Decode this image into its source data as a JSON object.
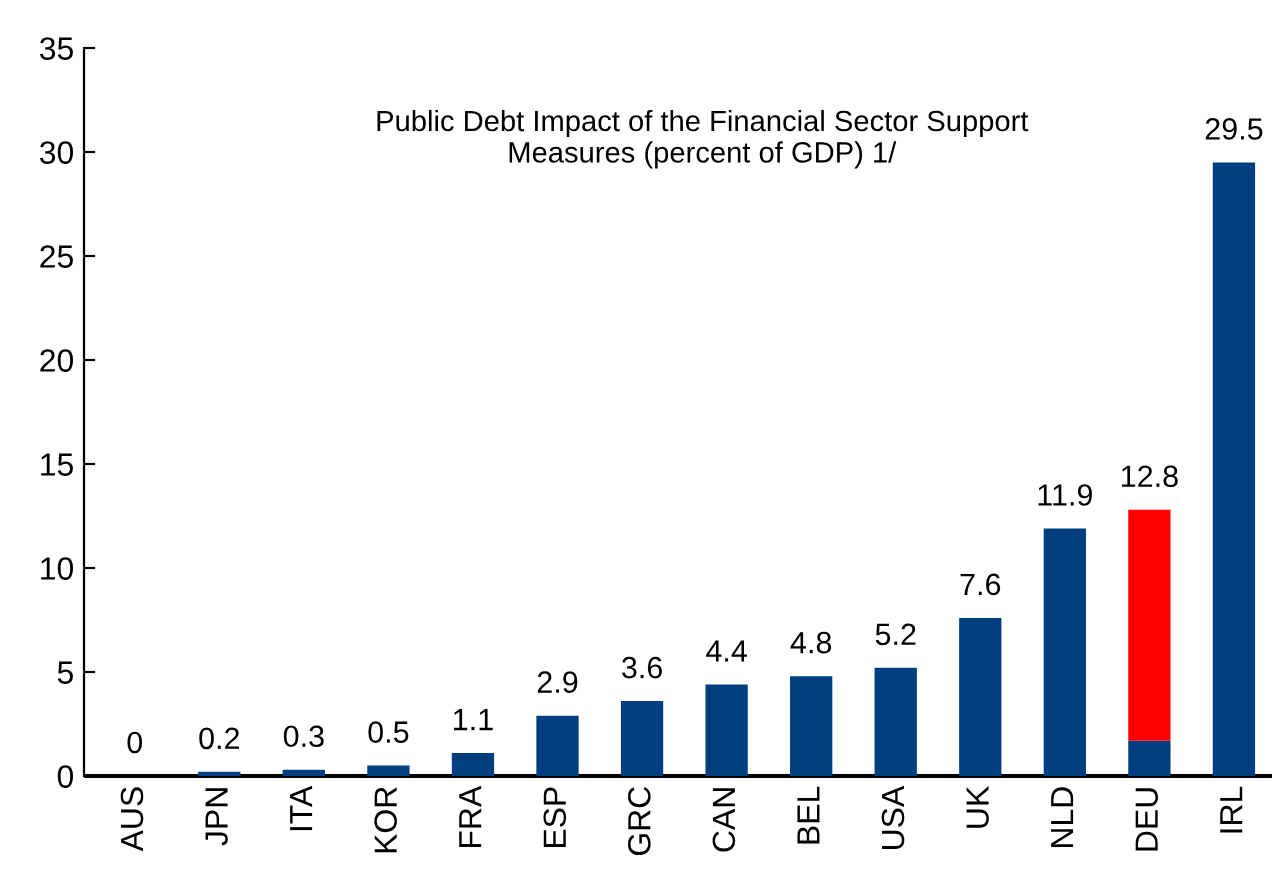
{
  "chart_data": {
    "type": "bar",
    "title": "Public Debt Impact of the Financial Sector Support\nMeasures (percent of GDP) 1/",
    "categories": [
      "AUS",
      "JPN",
      "ITA",
      "KOR",
      "FRA",
      "ESP",
      "GRC",
      "CAN",
      "BEL",
      "USA",
      "UK",
      "NLD",
      "DEU",
      "IRL"
    ],
    "stacked": true,
    "series": [
      {
        "color": "#003f7f",
        "values": [
          0,
          0.2,
          0.3,
          0.5,
          1.1,
          2.9,
          3.6,
          4.4,
          4.8,
          5.2,
          7.6,
          11.9,
          1.7,
          29.5
        ]
      },
      {
        "color": "#ff0000",
        "values": [
          null,
          null,
          null,
          null,
          null,
          null,
          null,
          null,
          null,
          null,
          null,
          null,
          11.1,
          null
        ]
      }
    ],
    "totals": [
      "0",
      "0.2",
      "0.3",
      "0.5",
      "1.1",
      "2.9",
      "3.6",
      "4.4",
      "4.8",
      "5.2",
      "7.6",
      "11.9",
      "12.8",
      "29.5"
    ],
    "ylim": [
      0,
      35
    ],
    "yticks": [
      0,
      5,
      10,
      15,
      20,
      25,
      30,
      35
    ],
    "grid": false
  }
}
